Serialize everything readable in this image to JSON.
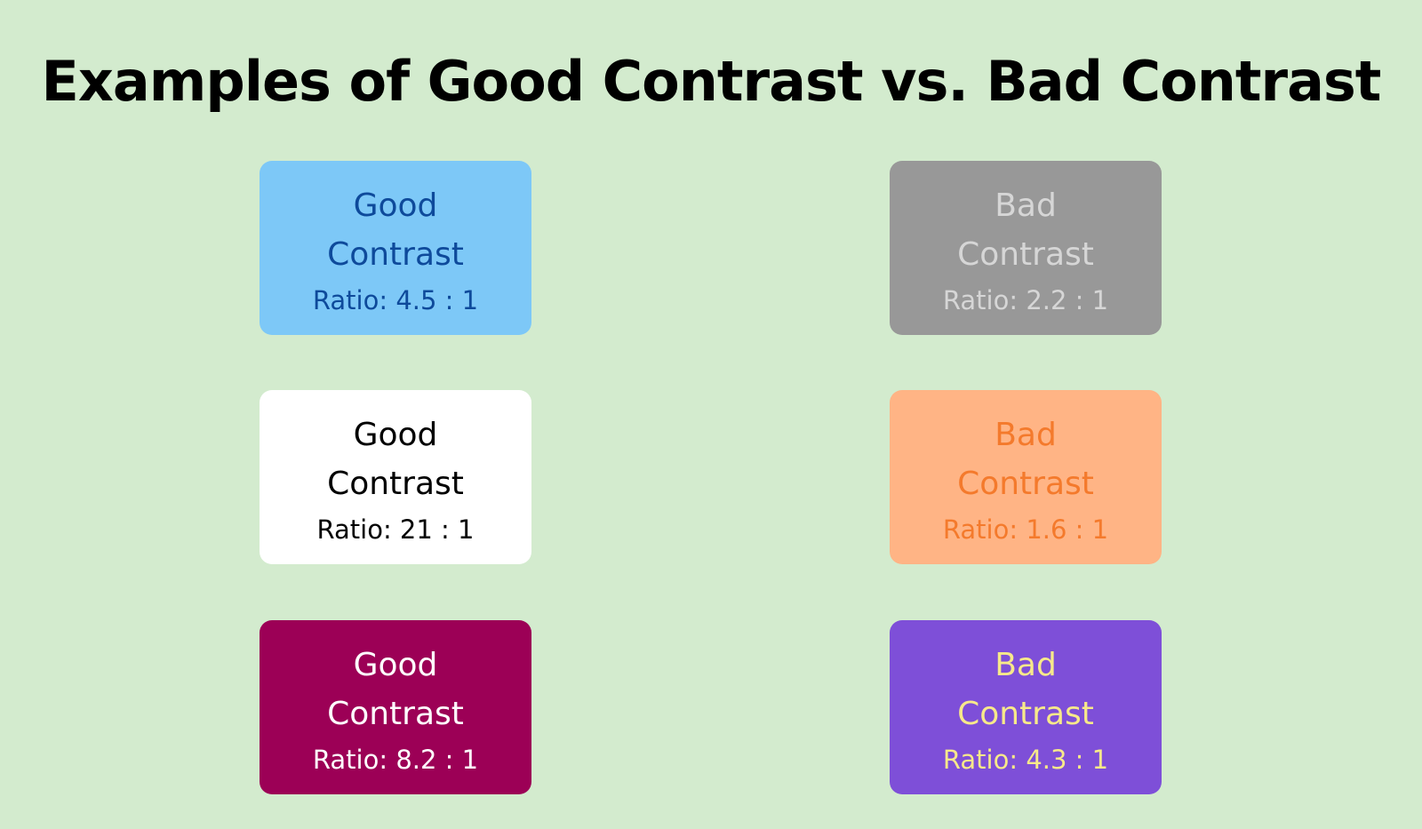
{
  "title": "Examples of Good Contrast vs. Bad Contrast",
  "cards": [
    {
      "line1": "Good",
      "line2": "Contrast",
      "ratio": "Ratio: 4.5 : 1",
      "bg": "#7dc8f7",
      "fg": "#0e4a9b"
    },
    {
      "line1": "Bad",
      "line2": "Contrast",
      "ratio": "Ratio: 2.2 : 1",
      "bg": "#989898",
      "fg": "#d6d6d6"
    },
    {
      "line1": "Good",
      "line2": "Contrast",
      "ratio": "Ratio: 21 : 1",
      "bg": "#ffffff",
      "fg": "#000000"
    },
    {
      "line1": "Bad",
      "line2": "Contrast",
      "ratio": "Ratio: 1.6 : 1",
      "bg": "#ffb485",
      "fg": "#f47a2c"
    },
    {
      "line1": "Good",
      "line2": "Contrast",
      "ratio": "Ratio: 8.2 : 1",
      "bg": "#9c0056",
      "fg": "#ffffff"
    },
    {
      "line1": "Bad",
      "line2": "Contrast",
      "ratio": "Ratio: 4.3 : 1",
      "bg": "#7e4fd8",
      "fg": "#f7e98a"
    }
  ]
}
